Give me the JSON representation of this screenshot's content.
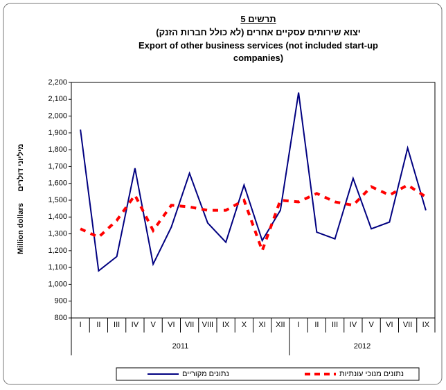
{
  "chart_data": {
    "type": "line",
    "title": "תרשים 5",
    "subtitle_he": "יצוא שירותים עסקיים אחרים (לא כולל חברות הזנק)",
    "subtitle_en": "Export of other business services (not included start-up companies)",
    "ylabel_en": "Million dollars",
    "ylabel_he": "מיליוני דולרים",
    "groups": [
      {
        "label": "2011",
        "categories": [
          "I",
          "II",
          "III",
          "IV",
          "V",
          "VI",
          "VII",
          "VIII",
          "IX",
          "X",
          "XI",
          "XII"
        ]
      },
      {
        "label": "2012",
        "categories": [
          "I",
          "II",
          "III",
          "IV",
          "V",
          "VI",
          "VII",
          "IX"
        ]
      }
    ],
    "series": [
      {
        "name": "נתונים מקוריים",
        "color": "#000080",
        "dash": false,
        "values": [
          1920,
          1080,
          1165,
          1690,
          1120,
          1340,
          1660,
          1365,
          1250,
          1590,
          1260,
          1440,
          2140,
          1310,
          1270,
          1630,
          1330,
          1370,
          1810,
          1440
        ]
      },
      {
        "name": "נתונים מנוכי עונתיות",
        "color": "#ff0000",
        "dash": true,
        "values": [
          1330,
          1280,
          1380,
          1530,
          1320,
          1470,
          1460,
          1440,
          1440,
          1500,
          1200,
          1500,
          1490,
          1540,
          1490,
          1470,
          1580,
          1530,
          1590,
          1520
        ]
      }
    ],
    "ylim": [
      800,
      2200
    ],
    "yticks": [
      800,
      900,
      {
        "value": 1000,
        "label": "1,000"
      },
      {
        "value": 1100,
        "label": "1,100"
      },
      {
        "value": 1200,
        "label": "1,200"
      },
      {
        "value": 1300,
        "label": "1,300"
      },
      {
        "value": 1400,
        "label": "1,400"
      },
      {
        "value": 1500,
        "label": "1,500"
      },
      {
        "value": 1600,
        "label": "1,600"
      },
      {
        "value": 1700,
        "label": "1,700"
      },
      {
        "value": 1800,
        "label": "1,800"
      },
      {
        "value": 1900,
        "label": "1,900"
      },
      {
        "value": 2000,
        "label": "2,000"
      },
      {
        "value": 2100,
        "label": "2,100"
      },
      {
        "value": 2200,
        "label": "2,200"
      }
    ],
    "legend": "bottom"
  }
}
